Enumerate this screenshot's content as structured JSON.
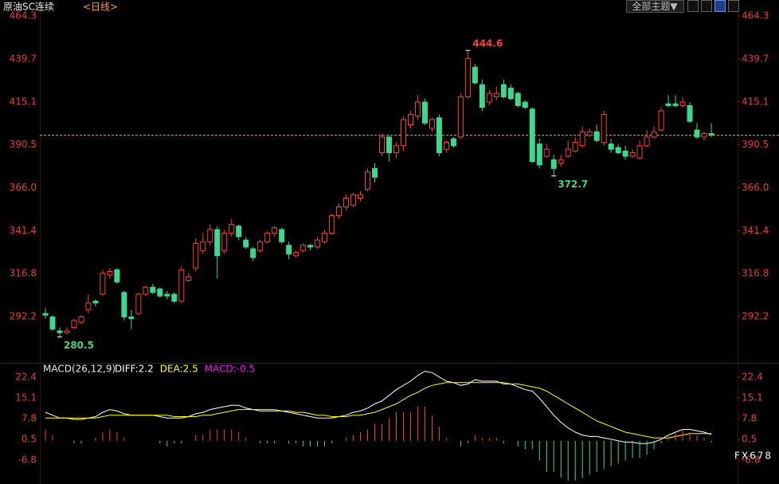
{
  "toolbar": {
    "symbol": "原油SC连续",
    "period": "<日线>",
    "theme_button": "全部主题▼"
  },
  "watermark": "FX678",
  "chart_data": [
    {
      "type": "candlestick",
      "up_color": "#ff3c3c",
      "down_color": "#3fd68f",
      "ylim": [
        267.1,
        469.8
      ],
      "yticks": [
        464.3,
        439.7,
        415.1,
        390.5,
        {
          "value": 366,
          "label": "366.0"
        },
        341.4,
        316.8,
        292.2
      ],
      "open": [
        294,
        292,
        284,
        283,
        286,
        289,
        296,
        301,
        305,
        316,
        319,
        306,
        292,
        294,
        305,
        309,
        308,
        305,
        305,
        301,
        313,
        320,
        330,
        335,
        342,
        330,
        340,
        344,
        336,
        331,
        330,
        335,
        340,
        342,
        333,
        327,
        330,
        333,
        332,
        335,
        340,
        350,
        355,
        356,
        360,
        365,
        377,
        386,
        395,
        386,
        390,
        402,
        407,
        415,
        400,
        406,
        388,
        394,
        395,
        418,
        435,
        425,
        415,
        418,
        425,
        423,
        420,
        415,
        411,
        391,
        384,
        382,
        380,
        384,
        387,
        390,
        396,
        398,
        392,
        391,
        389,
        387,
        384,
        383,
        390,
        395,
        399,
        414,
        414,
        413,
        413,
        399,
        395,
        397
      ],
      "high": [
        297,
        293,
        286,
        286,
        291,
        293,
        305,
        302,
        319,
        320,
        320,
        307,
        296,
        306,
        310,
        311,
        309,
        307,
        306,
        321,
        317,
        337,
        340,
        345,
        344,
        342,
        348,
        345,
        338,
        332,
        336,
        341,
        344,
        343,
        335,
        330,
        334,
        334,
        338,
        342,
        351,
        357,
        362,
        363,
        364,
        377,
        380,
        397,
        396,
        392,
        407,
        410,
        419,
        417,
        406,
        408,
        393,
        395,
        420,
        444.6,
        437,
        428,
        422,
        424,
        428,
        425,
        421,
        416,
        412,
        394,
        391,
        385,
        385,
        393,
        395,
        401,
        400,
        402,
        410,
        394,
        391,
        390,
        388,
        393,
        399,
        401,
        412,
        419,
        419,
        418,
        415,
        403,
        398,
        403
      ],
      "low": [
        291,
        284,
        280.5,
        282,
        285,
        288,
        294,
        298,
        304,
        314,
        311,
        290,
        285,
        293,
        304,
        305,
        303,
        302,
        300,
        300,
        312,
        318,
        328,
        333,
        314,
        328,
        338,
        336,
        331,
        324,
        329,
        334,
        338,
        334,
        325,
        326,
        329,
        330,
        331,
        334,
        339,
        348,
        353,
        355,
        358,
        364,
        369,
        384,
        381,
        383,
        387,
        400,
        405,
        402,
        398,
        384,
        386,
        389,
        394,
        417,
        425,
        410,
        413,
        416,
        417,
        416,
        412,
        411,
        380,
        377,
        383,
        372.7,
        378,
        383,
        386,
        389,
        395,
        392,
        390,
        386,
        385,
        382,
        383,
        382,
        389,
        394,
        398,
        412,
        412,
        412,
        403,
        394,
        393,
        395
      ],
      "close": [
        293,
        285,
        283,
        284,
        290,
        292,
        300,
        300,
        317,
        318,
        312,
        292,
        291,
        305,
        309,
        306,
        304,
        304,
        301,
        319,
        315,
        334,
        335,
        342,
        327,
        340,
        345,
        338,
        332,
        326,
        335,
        340,
        343,
        335,
        328,
        329,
        333,
        332,
        336,
        340,
        350,
        355,
        360,
        362,
        362,
        375,
        372,
        395,
        386,
        390,
        405,
        408,
        415,
        403,
        405,
        386,
        392,
        390,
        418,
        440,
        426,
        412,
        420,
        420,
        418,
        417,
        413,
        412,
        381,
        379,
        388,
        377,
        382,
        388,
        392,
        398,
        398,
        393,
        408,
        388,
        386,
        384,
        386,
        390,
        395,
        398,
        410,
        413,
        413,
        415,
        404,
        395,
        397,
        396
      ]
    },
    {
      "type": "macd",
      "title": "MACD(26,12,9)",
      "ylim": [
        -14.7,
        25.5
      ],
      "yticks": [
        22.4,
        15.1,
        7.8,
        0.5,
        -6.8
      ],
      "series": [
        {
          "name": "DIFF:2.2",
          "color": "#ffffff",
          "values": [
            10,
            9,
            8,
            8,
            7.5,
            7.5,
            8,
            8.5,
            10,
            11,
            10.5,
            9.5,
            9,
            9,
            9,
            9,
            8.5,
            8,
            8,
            8,
            8.5,
            9.5,
            10,
            11,
            11.5,
            12,
            12.5,
            12.5,
            11.5,
            11,
            10.5,
            10.5,
            10.5,
            10.5,
            10,
            9.5,
            9,
            8.5,
            8,
            8,
            8,
            8.5,
            9,
            10,
            10.5,
            11.5,
            13,
            14,
            16,
            18,
            19.5,
            21,
            23,
            24.5,
            24,
            22.5,
            21,
            20.5,
            19.5,
            20,
            21.5,
            21,
            21,
            21,
            20,
            20,
            19,
            18,
            17.5,
            15,
            12,
            9,
            6.5,
            4.5,
            3,
            2,
            1.5,
            1.5,
            1,
            0.5,
            0,
            -0.5,
            -0.5,
            -1,
            -1,
            -0.5,
            0.5,
            2,
            3,
            4,
            4,
            3.5,
            3,
            2.2
          ]
        },
        {
          "name": "DEA:2.5",
          "color": "#ffff00",
          "values": [
            8,
            8,
            8,
            8,
            8,
            8,
            8,
            8,
            8.5,
            9,
            9,
            9,
            9,
            9,
            9,
            9,
            9,
            9,
            8.5,
            8.5,
            8.5,
            8.5,
            9,
            9,
            9.5,
            10,
            10.5,
            11,
            11,
            11,
            11,
            11,
            11,
            10.5,
            10.5,
            10,
            10,
            9.5,
            9,
            9,
            8.5,
            8.5,
            8.5,
            9,
            9,
            9.5,
            10,
            11,
            12,
            13,
            14.5,
            16,
            17,
            18.5,
            19.5,
            20,
            20.5,
            20.5,
            20.5,
            20.5,
            20.5,
            20.5,
            20.5,
            20.5,
            20.5,
            20,
            20,
            19.5,
            19,
            18.5,
            17.5,
            16,
            14.5,
            13,
            11.5,
            10,
            8.5,
            7,
            6,
            5,
            4,
            3,
            2.5,
            2,
            1.5,
            1,
            1,
            1,
            1.5,
            2,
            2.5,
            2.5,
            2.5,
            2.5
          ]
        },
        {
          "name": "MACD:-0.5",
          "color": "#ff00ff",
          "up_color": "#ff3c3c",
          "down_color": "#3fd68f",
          "values": [
            4,
            2,
            0,
            0,
            -1,
            -1,
            0,
            1,
            3,
            4,
            3,
            1,
            0,
            0,
            0,
            0,
            -1,
            -2,
            -1,
            -1,
            0,
            2,
            2,
            4,
            4,
            4,
            4,
            3,
            1,
            0,
            -1,
            -1,
            -1,
            0,
            -1,
            -1,
            -2,
            -2,
            -2,
            -2,
            -1,
            0,
            1,
            2,
            3,
            4,
            6,
            6,
            8,
            10,
            10,
            10,
            12,
            12,
            9,
            5,
            1,
            0,
            -2,
            -1,
            2,
            1,
            1,
            1,
            -1,
            0,
            -2,
            -3,
            -3,
            -7,
            -11,
            -11,
            -13,
            -14,
            -14,
            -13,
            -12,
            -11,
            -10,
            -9,
            -8,
            -7,
            -6,
            -6,
            -5,
            -3,
            -1,
            2,
            3,
            4,
            3,
            2,
            1,
            -0.5
          ]
        }
      ]
    }
  ]
}
